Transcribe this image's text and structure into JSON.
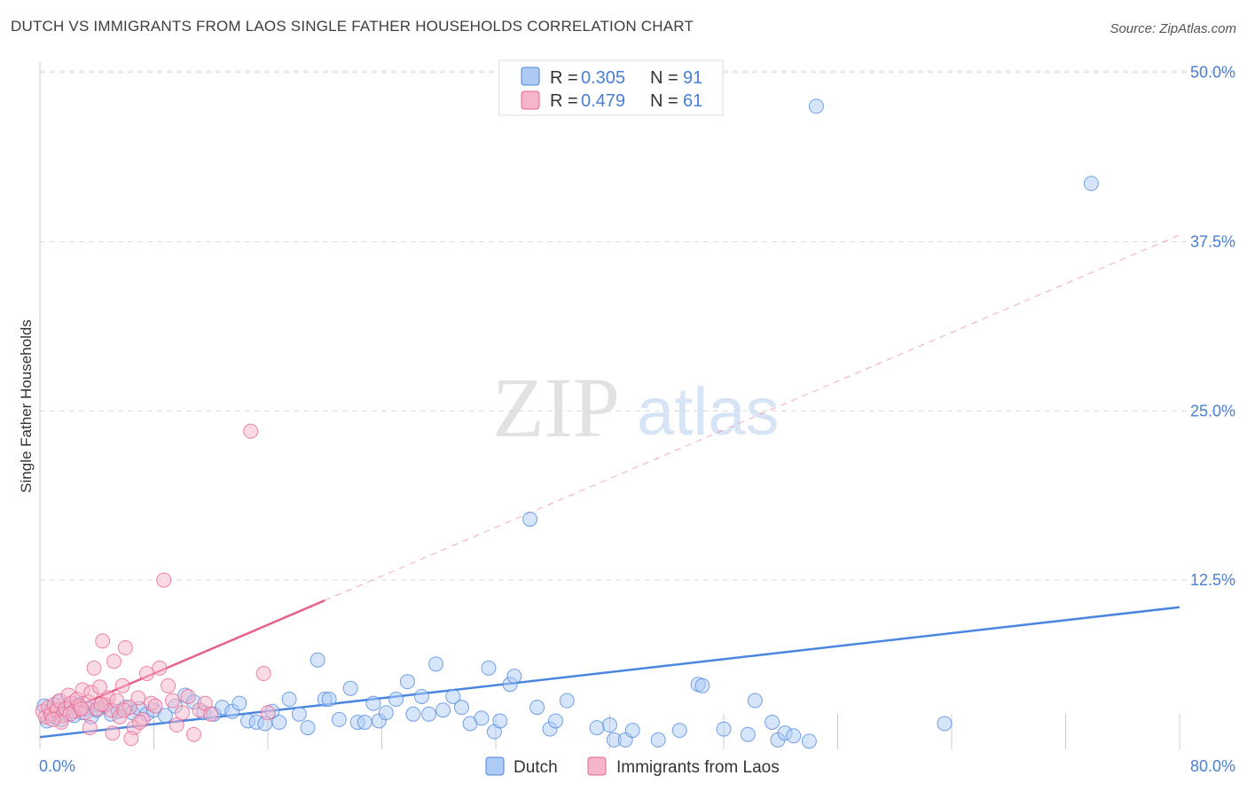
{
  "title": "DUTCH VS IMMIGRANTS FROM LAOS SINGLE FATHER HOUSEHOLDS CORRELATION CHART",
  "source": "Source: ZipAtlas.com",
  "colors": {
    "dutch": "#4a86e0",
    "dutch_fill": "#aecbf5",
    "laos": "#e8628e",
    "laos_fill": "#f6b6ca",
    "tick_text": "#4a7fd4",
    "grid": "#dcdcdc"
  },
  "watermark": {
    "zip": "ZIP",
    "atlas": "atlas"
  },
  "legend": {
    "dutch": {
      "r_label": "R = ",
      "r_value": "0.305",
      "n_label": "N = ",
      "n_value": "91"
    },
    "laos": {
      "r_label": "R = ",
      "r_value": "0.479",
      "n_label": "N = ",
      "n_value": "61"
    }
  },
  "bottom_legend": {
    "dutch": "Dutch",
    "laos": "Immigrants from Laos"
  },
  "chart_data": {
    "type": "scatter",
    "title": "DUTCH VS IMMIGRANTS FROM LAOS SINGLE FATHER HOUSEHOLDS CORRELATION CHART",
    "xlabel": "",
    "ylabel": "Single Father Households",
    "xlim": [
      0,
      80
    ],
    "ylim": [
      0,
      52
    ],
    "x_tick_labels": [
      "0.0%",
      "80.0%"
    ],
    "y_ticks": [
      12.5,
      25.0,
      37.5,
      50.0
    ],
    "y_tick_labels": [
      "12.5%",
      "25.0%",
      "37.5%",
      "50.0%"
    ],
    "grid": true,
    "series": [
      {
        "name": "Dutch",
        "color": "#4a86e0",
        "trend": {
          "x": [
            0,
            80
          ],
          "y": [
            0.9,
            10.5
          ],
          "style": "solid"
        },
        "points": [
          [
            0.3,
            3.2
          ],
          [
            0.5,
            2.1
          ],
          [
            0.7,
            2.8
          ],
          [
            0.9,
            3.0
          ],
          [
            1.1,
            2.4
          ],
          [
            1.3,
            3.5
          ],
          [
            1.5,
            2.2
          ],
          [
            1.7,
            2.9
          ],
          [
            1.9,
            2.6
          ],
          [
            2.1,
            3.1
          ],
          [
            2.4,
            2.5
          ],
          [
            2.7,
            3.3
          ],
          [
            3.0,
            2.7
          ],
          [
            3.3,
            3.0
          ],
          [
            3.6,
            2.4
          ],
          [
            4.0,
            2.9
          ],
          [
            4.5,
            3.2
          ],
          [
            5.0,
            2.6
          ],
          [
            5.5,
            2.8
          ],
          [
            6.0,
            3.1
          ],
          [
            6.5,
            2.7
          ],
          [
            7.0,
            3.0
          ],
          [
            7.5,
            2.6
          ],
          [
            8.0,
            2.9
          ],
          [
            8.8,
            2.5
          ],
          [
            9.5,
            3.2
          ],
          [
            10.2,
            4.0
          ],
          [
            10.8,
            3.5
          ],
          [
            11.5,
            2.7
          ],
          [
            12.2,
            2.6
          ],
          [
            12.8,
            3.1
          ],
          [
            13.5,
            2.8
          ],
          [
            14.0,
            3.4
          ],
          [
            14.6,
            2.1
          ],
          [
            15.2,
            2.0
          ],
          [
            15.8,
            1.9
          ],
          [
            16.3,
            2.8
          ],
          [
            16.8,
            2.0
          ],
          [
            17.5,
            3.7
          ],
          [
            18.2,
            2.6
          ],
          [
            18.8,
            1.6
          ],
          [
            19.5,
            6.6
          ],
          [
            20.0,
            3.7
          ],
          [
            20.3,
            3.7
          ],
          [
            21.0,
            2.2
          ],
          [
            21.8,
            4.5
          ],
          [
            22.3,
            2.0
          ],
          [
            22.8,
            2.0
          ],
          [
            23.4,
            3.4
          ],
          [
            23.8,
            2.1
          ],
          [
            24.3,
            2.7
          ],
          [
            25.0,
            3.7
          ],
          [
            25.8,
            5.0
          ],
          [
            26.2,
            2.6
          ],
          [
            26.8,
            3.9
          ],
          [
            27.3,
            2.6
          ],
          [
            27.8,
            6.3
          ],
          [
            28.3,
            2.9
          ],
          [
            29.0,
            3.9
          ],
          [
            29.6,
            3.1
          ],
          [
            30.2,
            1.9
          ],
          [
            31.0,
            2.3
          ],
          [
            31.5,
            6.0
          ],
          [
            31.9,
            1.3
          ],
          [
            32.3,
            2.1
          ],
          [
            33.0,
            4.8
          ],
          [
            33.3,
            5.4
          ],
          [
            34.4,
            17.0
          ],
          [
            34.9,
            3.1
          ],
          [
            35.8,
            1.5
          ],
          [
            36.2,
            2.1
          ],
          [
            37.0,
            3.6
          ],
          [
            39.1,
            1.6
          ],
          [
            40.0,
            1.8
          ],
          [
            40.3,
            0.7
          ],
          [
            41.1,
            0.7
          ],
          [
            41.6,
            1.4
          ],
          [
            43.4,
            0.7
          ],
          [
            44.9,
            1.4
          ],
          [
            46.2,
            4.8
          ],
          [
            46.5,
            4.7
          ],
          [
            48.0,
            1.5
          ],
          [
            49.7,
            1.1
          ],
          [
            50.2,
            3.6
          ],
          [
            51.4,
            2.0
          ],
          [
            51.8,
            0.7
          ],
          [
            52.3,
            1.2
          ],
          [
            52.9,
            1.0
          ],
          [
            54.0,
            0.6
          ],
          [
            54.5,
            47.5
          ],
          [
            63.5,
            1.9
          ],
          [
            73.8,
            41.8
          ]
        ]
      },
      {
        "name": "Immigrants from Laos",
        "color": "#e8628e",
        "trend": {
          "x": [
            0,
            20
          ],
          "y": [
            2.0,
            11.0
          ],
          "style": "solid",
          "extended": {
            "x": [
              20,
              80
            ],
            "y": [
              11.0,
              38.0
            ],
            "style": "dashed"
          }
        },
        "points": [
          [
            0.2,
            2.8
          ],
          [
            0.4,
            2.4
          ],
          [
            0.6,
            3.1
          ],
          [
            0.8,
            2.6
          ],
          [
            1.0,
            3.3
          ],
          [
            1.2,
            2.9
          ],
          [
            1.4,
            3.6
          ],
          [
            1.6,
            2.5
          ],
          [
            1.8,
            3.0
          ],
          [
            2.0,
            4.0
          ],
          [
            2.2,
            3.4
          ],
          [
            2.4,
            2.8
          ],
          [
            2.6,
            3.7
          ],
          [
            2.8,
            3.2
          ],
          [
            3.0,
            4.4
          ],
          [
            3.2,
            2.7
          ],
          [
            3.4,
            3.5
          ],
          [
            3.6,
            4.2
          ],
          [
            3.8,
            6.0
          ],
          [
            4.0,
            3.0
          ],
          [
            4.2,
            4.6
          ],
          [
            4.4,
            8.0
          ],
          [
            4.6,
            3.3
          ],
          [
            4.8,
            3.8
          ],
          [
            5.0,
            2.9
          ],
          [
            5.2,
            6.5
          ],
          [
            5.4,
            3.6
          ],
          [
            5.6,
            2.4
          ],
          [
            5.8,
            4.7
          ],
          [
            6.0,
            7.5
          ],
          [
            6.3,
            3.1
          ],
          [
            6.6,
            1.6
          ],
          [
            6.9,
            3.8
          ],
          [
            7.2,
            2.2
          ],
          [
            7.5,
            5.6
          ],
          [
            7.8,
            3.4
          ],
          [
            8.1,
            3.2
          ],
          [
            8.4,
            6.0
          ],
          [
            8.7,
            12.5
          ],
          [
            9.0,
            4.7
          ],
          [
            9.3,
            3.6
          ],
          [
            9.6,
            1.8
          ],
          [
            10.0,
            2.7
          ],
          [
            10.4,
            3.9
          ],
          [
            10.8,
            1.1
          ],
          [
            11.2,
            2.9
          ],
          [
            11.6,
            3.4
          ],
          [
            12.0,
            2.6
          ],
          [
            14.8,
            23.5
          ],
          [
            15.7,
            5.6
          ],
          [
            16.0,
            2.7
          ],
          [
            2.1,
            2.6
          ],
          [
            3.5,
            1.6
          ],
          [
            5.1,
            1.2
          ],
          [
            6.4,
            0.8
          ],
          [
            7.0,
            2.0
          ],
          [
            1.5,
            2.0
          ],
          [
            0.9,
            2.2
          ],
          [
            2.9,
            3.0
          ],
          [
            4.3,
            3.3
          ],
          [
            5.9,
            2.9
          ]
        ]
      }
    ]
  }
}
